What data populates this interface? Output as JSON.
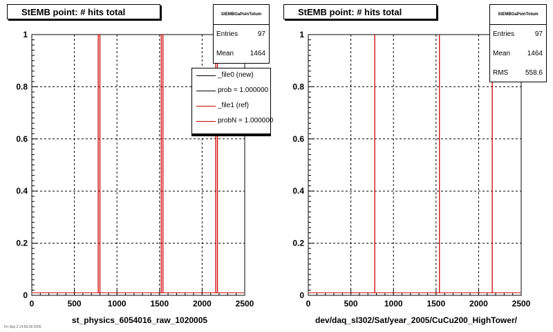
{
  "panels": [
    {
      "title": "StEMB point: # hits total",
      "xlabel": "st_physics_6054016_raw_1020005",
      "stats": {
        "name": "StEMBGaPoinTotum",
        "rows": [
          {
            "key": "Entries",
            "value": "97"
          },
          {
            "key": "Mean",
            "value": "1464"
          }
        ]
      },
      "legend": [
        {
          "label": "_file0 (new)",
          "color": "#000000"
        },
        {
          "label": "prob = 1.000000",
          "color": "#000000"
        },
        {
          "label": "_file1 (ref)",
          "color": "#cc0000"
        },
        {
          "label": "probN = 1.000000",
          "color": "#cc0000"
        }
      ]
    },
    {
      "title": "StEMB point: # hits total",
      "xlabel": "dev/daq_sl302/Sat/year_2005/CuCu200_HighTower/",
      "stats": {
        "name": "StEMBGaPoinTotum",
        "rows": [
          {
            "key": "Entries",
            "value": "97"
          },
          {
            "key": "Mean",
            "value": "1464"
          },
          {
            "key": "RMS",
            "value": "558.6"
          }
        ]
      },
      "legend": []
    }
  ],
  "footer_text": "Fri Sep 2 14:56:28 2005",
  "chart_data": [
    {
      "type": "bar",
      "title": "StEMB point: # hits total",
      "xlabel": "st_physics_6054016_raw_1020005",
      "ylabel": "",
      "xlim": [
        0,
        2500
      ],
      "ylim": [
        0,
        1
      ],
      "grid": true,
      "x_ticks": [
        "0",
        "500",
        "1000",
        "1500",
        "2000",
        "2500"
      ],
      "y_ticks": [
        "0",
        "0.2",
        "0.4",
        "0.6",
        "0.8",
        "1"
      ],
      "legend_position": "top-right",
      "series": [
        {
          "name": "_file1 (ref)",
          "color": "#cc0000",
          "x": [
            780,
            800,
            1520,
            1540,
            2160,
            2180
          ],
          "values": [
            1,
            1,
            1,
            1,
            1,
            1
          ]
        }
      ],
      "baseline_value": 0.01
    },
    {
      "type": "bar",
      "title": "StEMB point: # hits total",
      "xlabel": "dev/daq_sl302/Sat/year_2005/CuCu200_HighTower/",
      "ylabel": "",
      "xlim": [
        0,
        2500
      ],
      "ylim": [
        0,
        1
      ],
      "grid": true,
      "x_ticks": [
        "0",
        "500",
        "1000",
        "1500",
        "2000",
        "2500"
      ],
      "y_ticks": [
        "0",
        "0.2",
        "0.4",
        "0.6",
        "0.8",
        "1"
      ],
      "series": [
        {
          "name": "_file1 (ref)",
          "color": "#cc0000",
          "x": [
            780,
            1540,
            2160
          ],
          "values": [
            1,
            1,
            1
          ]
        }
      ],
      "baseline_value": 0.01
    }
  ]
}
